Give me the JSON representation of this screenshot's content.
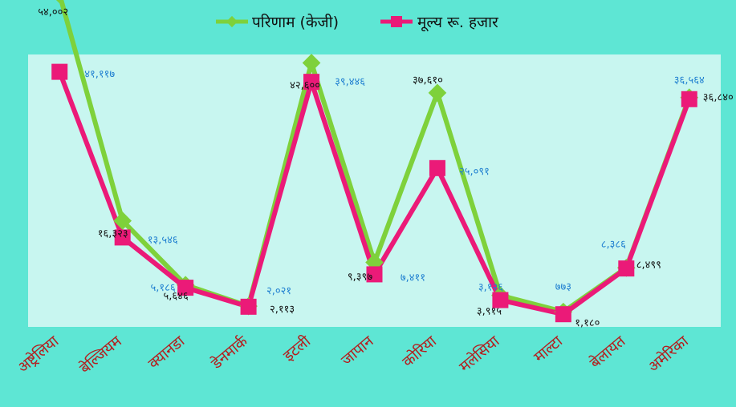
{
  "colors": {
    "background": "#5ee6d4",
    "plot_area": "#c8f6f0",
    "series_a": "#7ed13b",
    "series_b": "#eb1a78",
    "label_a": "#111111",
    "label_b": "#1f7fd0",
    "x_ticks": "#b41e1e"
  },
  "chart_data": {
    "type": "line",
    "title": "",
    "xlabel": "",
    "ylabel": "",
    "categories": [
      "अष्ट्रेलिया",
      "बेल्जियम",
      "क्यानडा",
      "डेनमार्क",
      "इटली",
      "जापान",
      "कोरिया",
      "मलेसिया",
      "माल्टा",
      "बेलायत",
      "अमेरिका"
    ],
    "ylim": [
      0,
      44000
    ],
    "grid": false,
    "legend": "top",
    "series": [
      {
        "name": "परिणाम (केजी)",
        "marker": "diamond",
        "values": [
          54002,
          16323,
          5646,
          2113,
          42600,
          9397,
          37610,
          3915,
          1180,
          8499,
          36840
        ],
        "labels": [
          "५४,००२",
          "१६,३२३",
          "५,६४६",
          "२,११३",
          "४२,६००",
          "९,३९७",
          "३७,६१०",
          "३,९१५",
          "१,१८०",
          "८,४९९",
          "३६,८४०"
        ]
      },
      {
        "name": "मूल्य रू. हजार",
        "marker": "square",
        "values": [
          41117,
          13546,
          5186,
          2021,
          39446,
          7411,
          25091,
          3126,
          773,
          8386,
          36564
        ],
        "labels": [
          "४१,११७",
          "१३,५४६",
          "५,१८६",
          "२,०२१",
          "३९,४४६",
          "७,४११",
          "२५,०९१",
          "३,१२६",
          "७७३",
          "८,३८६",
          "३६,५६४"
        ]
      }
    ]
  }
}
